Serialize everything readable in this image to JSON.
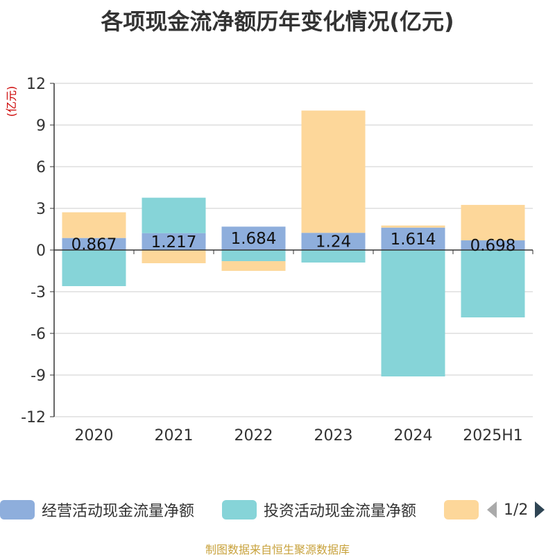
{
  "title": "各项现金流净额历年变化情况(亿元)",
  "source": "制图数据来自恒生聚源数据库",
  "legend": {
    "items": [
      {
        "label": "经营活动现金流量净额",
        "color": "#8eaedc"
      },
      {
        "label": "投资活动现金流量净额",
        "color": "#86d4d8"
      },
      {
        "label": "",
        "color": "#fdd79a"
      }
    ],
    "page": "1/2"
  },
  "chart_data": {
    "type": "bar",
    "stacked": true,
    "ylabel": "(亿元)",
    "ylim": [
      -12,
      12
    ],
    "yticks": [
      12,
      9,
      6,
      3,
      0,
      -3,
      -6,
      -9,
      -12
    ],
    "grid": true,
    "legend_position": "bottom",
    "categories": [
      "2020",
      "2021",
      "2022",
      "2023",
      "2024",
      "2025H1"
    ],
    "series": [
      {
        "name": "经营活动现金流量净额",
        "color": "#8eaedc",
        "values": [
          0.867,
          1.217,
          1.684,
          1.24,
          1.614,
          0.698
        ],
        "labels": [
          "0.867",
          "1.217",
          "1.684",
          "1.24",
          "1.614",
          "0.698"
        ]
      },
      {
        "name": "投资活动现金流量净额",
        "color": "#86d4d8",
        "values": [
          -2.6,
          2.55,
          -0.8,
          -0.9,
          -9.1,
          -4.85
        ]
      },
      {
        "color": "#fdd79a",
        "values": [
          1.85,
          -0.95,
          -0.7,
          8.8,
          0.15,
          2.55
        ]
      }
    ]
  }
}
